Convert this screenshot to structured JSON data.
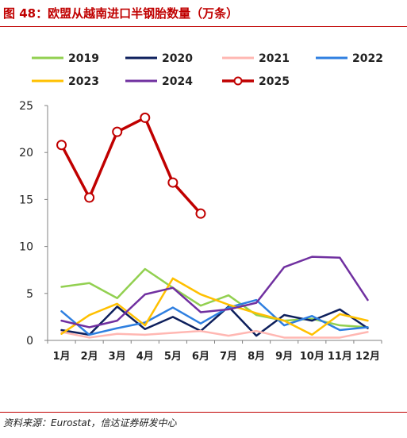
{
  "header": {
    "title": "图 48：欧盟从越南进口半钢胎数量（万条）"
  },
  "footer": {
    "source": "资料来源：Eurostat，信达证券研发中心"
  },
  "colors": {
    "title": "#c00000",
    "rule": "#c00000"
  },
  "chart_data": {
    "type": "line",
    "title": "",
    "xlabel": "",
    "ylabel": "",
    "categories": [
      "1月",
      "2月",
      "3月",
      "4月",
      "5月",
      "6月",
      "7月",
      "8月",
      "9月",
      "10月",
      "11月",
      "12月"
    ],
    "ylim": [
      0,
      25
    ],
    "yticks": [
      0,
      5,
      10,
      15,
      20,
      25
    ],
    "grid": false,
    "legend": "top",
    "series": [
      {
        "name": "2019",
        "color": "#92d050",
        "markers": false,
        "values": [
          5.7,
          6.1,
          4.5,
          7.6,
          5.6,
          3.7,
          4.8,
          2.7,
          2.1,
          2.3,
          1.6,
          1.4
        ]
      },
      {
        "name": "2020",
        "color": "#0d1f5c",
        "markers": false,
        "values": [
          1.1,
          0.6,
          3.6,
          1.2,
          2.5,
          1.0,
          3.6,
          0.5,
          2.7,
          2.1,
          3.3,
          1.3
        ]
      },
      {
        "name": "2021",
        "color": "#ffb7b2",
        "markers": false,
        "values": [
          0.9,
          0.3,
          0.7,
          0.6,
          0.8,
          1.0,
          0.5,
          1.0,
          0.3,
          0.3,
          0.3,
          0.9
        ]
      },
      {
        "name": "2022",
        "color": "#2e7fe0",
        "markers": false,
        "values": [
          3.1,
          0.6,
          1.3,
          1.9,
          3.5,
          1.8,
          3.5,
          4.3,
          1.6,
          2.6,
          1.1,
          1.4
        ]
      },
      {
        "name": "2023",
        "color": "#ffc000",
        "markers": false,
        "values": [
          0.7,
          2.7,
          3.9,
          1.6,
          6.6,
          4.9,
          3.8,
          2.9,
          2.1,
          0.6,
          2.8,
          2.1
        ]
      },
      {
        "name": "2024",
        "color": "#7030a0",
        "markers": false,
        "values": [
          2.1,
          1.4,
          2.1,
          4.9,
          5.6,
          3.0,
          3.3,
          4.0,
          7.8,
          8.9,
          8.8,
          4.3
        ]
      },
      {
        "name": "2025",
        "color": "#c00000",
        "markers": true,
        "values": [
          20.8,
          15.2,
          22.2,
          23.7,
          16.8,
          13.5,
          null,
          null,
          null,
          null,
          null,
          null
        ]
      }
    ]
  }
}
